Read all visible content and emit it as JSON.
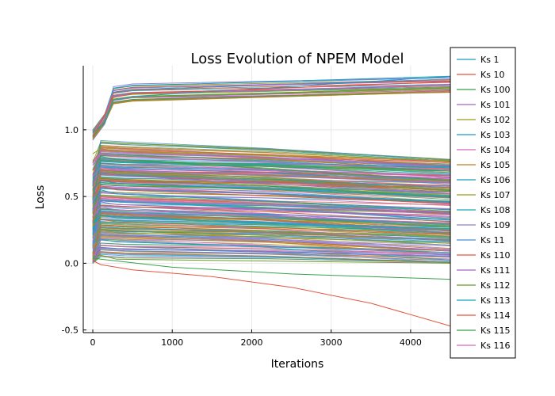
{
  "chart_data": {
    "type": "line",
    "title": "Loss Evolution of NPEM Model",
    "xlabel": "Iterations",
    "ylabel": "Loss",
    "xlim": [
      -120,
      4500
    ],
    "ylim": [
      -0.52,
      1.48
    ],
    "x_ticks": [
      0,
      1000,
      2000,
      3000,
      4000
    ],
    "x_tick_labels": [
      "0",
      "1000",
      "2000",
      "3000",
      "4000"
    ],
    "y_ticks": [
      -0.5,
      0.0,
      0.5,
      1.0
    ],
    "y_tick_labels": [
      "-0.5",
      "0.0",
      "0.5",
      "1.0"
    ],
    "grid": true,
    "legend_position": "right",
    "series_count_note_free": true,
    "series": [
      {
        "name": "Ks 1",
        "color": "#1f9bbf",
        "x": [
          0,
          150,
          250,
          500,
          4500
        ],
        "y": [
          0.98,
          1.05,
          1.22,
          1.25,
          1.4
        ]
      },
      {
        "name": "Ks 10",
        "color": "#e4553f",
        "x": [
          0,
          120,
          250,
          500,
          4500
        ],
        "y": [
          0.95,
          1.08,
          1.24,
          1.27,
          1.36
        ]
      },
      {
        "name": "Ks 100",
        "color": "#3aa14a",
        "x": [
          0,
          100,
          300,
          4500
        ],
        "y": [
          0.7,
          0.8,
          0.78,
          0.62
        ]
      },
      {
        "name": "Ks 101",
        "color": "#a862c7",
        "x": [
          0,
          100,
          300,
          4500
        ],
        "y": [
          0.6,
          0.68,
          0.66,
          0.52
        ]
      },
      {
        "name": "Ks 102",
        "color": "#9a9b1f",
        "x": [
          0,
          100,
          300,
          4500
        ],
        "y": [
          0.82,
          0.86,
          0.84,
          0.77
        ]
      },
      {
        "name": "Ks 103",
        "color": "#1f9bbf",
        "x": [
          0,
          100,
          300,
          4500
        ],
        "y": [
          0.45,
          0.55,
          0.52,
          0.4
        ]
      },
      {
        "name": "Ks 104",
        "color": "#d465c0",
        "x": [
          0,
          100,
          300,
          4500
        ],
        "y": [
          0.35,
          0.42,
          0.4,
          0.3
        ]
      },
      {
        "name": "Ks 105",
        "color": "#c8791f",
        "x": [
          0,
          100,
          300,
          4500
        ],
        "y": [
          0.28,
          0.33,
          0.31,
          0.22
        ]
      },
      {
        "name": "Ks 106",
        "color": "#1f9bbf",
        "x": [
          0,
          100,
          300,
          4500
        ],
        "y": [
          0.55,
          0.62,
          0.6,
          0.5
        ]
      },
      {
        "name": "Ks 107",
        "color": "#9a9b1f",
        "x": [
          0,
          100,
          300,
          4500
        ],
        "y": [
          0.2,
          0.25,
          0.23,
          0.15
        ]
      },
      {
        "name": "Ks 108",
        "color": "#1aa6b8",
        "x": [
          0,
          100,
          300,
          4500
        ],
        "y": [
          0.15,
          0.18,
          0.16,
          0.08
        ]
      },
      {
        "name": "Ks 109",
        "color": "#8e7fd6",
        "x": [
          0,
          100,
          300,
          4500
        ],
        "y": [
          0.65,
          0.72,
          0.7,
          0.6
        ]
      },
      {
        "name": "Ks 11",
        "color": "#4a8fd6",
        "x": [
          0,
          100,
          300,
          4500
        ],
        "y": [
          0.1,
          0.12,
          0.11,
          0.05
        ]
      },
      {
        "name": "Ks 110",
        "color": "#e4553f",
        "x": [
          0,
          100,
          500,
          1500,
          2500,
          3500,
          4500
        ],
        "y": [
          0.02,
          -0.01,
          -0.05,
          -0.1,
          -0.18,
          -0.3,
          -0.47
        ]
      },
      {
        "name": "Ks 111",
        "color": "#a862c7",
        "x": [
          0,
          100,
          300,
          4500
        ],
        "y": [
          0.4,
          0.46,
          0.44,
          0.35
        ]
      },
      {
        "name": "Ks 112",
        "color": "#6b9b2f",
        "x": [
          0,
          100,
          300,
          4500
        ],
        "y": [
          0.05,
          0.06,
          0.03,
          0.0
        ]
      },
      {
        "name": "Ks 113",
        "color": "#1aa6b8",
        "x": [
          0,
          100,
          300,
          4500
        ],
        "y": [
          0.3,
          0.36,
          0.34,
          0.26
        ]
      },
      {
        "name": "Ks 114",
        "color": "#e4553f",
        "x": [
          0,
          100,
          300,
          4500
        ],
        "y": [
          0.5,
          0.58,
          0.55,
          0.45
        ]
      },
      {
        "name": "Ks 115",
        "color": "#3aa14a",
        "x": [
          0,
          100,
          1000,
          2500,
          4500
        ],
        "y": [
          0.04,
          0.03,
          -0.03,
          -0.08,
          -0.12
        ]
      },
      {
        "name": "Ks 116",
        "color": "#d465c0",
        "x": [
          0,
          100,
          300,
          4500
        ],
        "y": [
          0.75,
          0.82,
          0.8,
          0.7
        ]
      }
    ]
  }
}
